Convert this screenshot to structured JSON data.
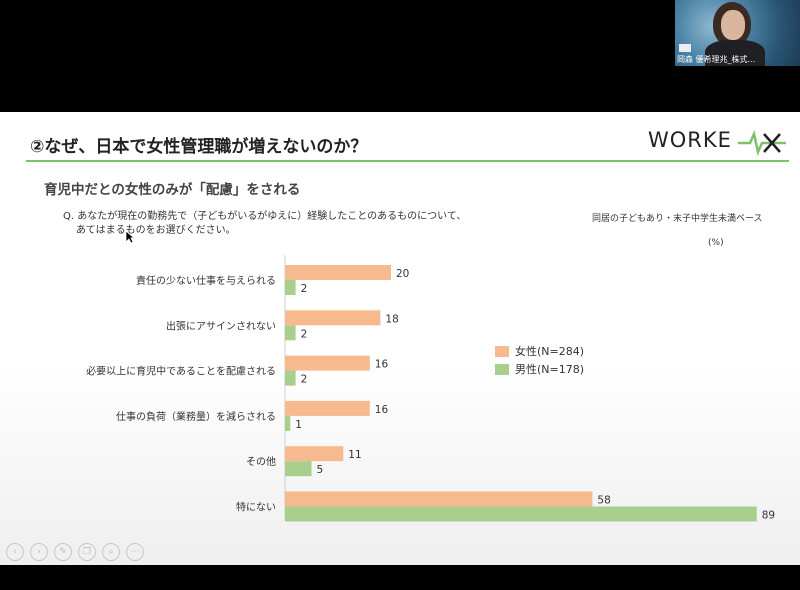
{
  "video": {
    "participant_name": "岡森 優希理兆_株式..."
  },
  "slide": {
    "title": "②なぜ、日本で女性管理職が増えないのか？",
    "logo_text": "WORKE",
    "subtitle": "育児中だとの女性のみが「配慮」をされる",
    "question_line1": "Q. あなたが現在の勤務先で（子どもがいるがゆえに）経験したことのあるものについて、",
    "question_line2": "あてはまるものをお選びください。",
    "base_note": "同居の子どもあり・末子中学生未満ベース",
    "unit_note": "(%)"
  },
  "legend": {
    "female": "女性(N=284)",
    "male": "男性(N=178)"
  },
  "colors": {
    "female": "#f7b98e",
    "male": "#a8cf8e",
    "accent": "#7fc06a"
  },
  "chart_data": {
    "type": "bar",
    "orientation": "horizontal",
    "categories": [
      "責任の少ない仕事を与えられる",
      "出張にアサインされない",
      "必要以上に育児中であることを配慮される",
      "仕事の負荷（業務量）を減らされる",
      "その他",
      "特にない"
    ],
    "series": [
      {
        "name": "女性(N=284)",
        "values": [
          20,
          18,
          16,
          16,
          11,
          58
        ]
      },
      {
        "name": "男性(N=178)",
        "values": [
          2,
          2,
          2,
          1,
          5,
          89
        ]
      }
    ],
    "unit": "(%)",
    "xlim": [
      0,
      90
    ],
    "legend_position": "right"
  },
  "controls": [
    "prev-icon",
    "next-icon",
    "pen-icon",
    "copy-icon",
    "zoom-icon",
    "more-icon"
  ]
}
